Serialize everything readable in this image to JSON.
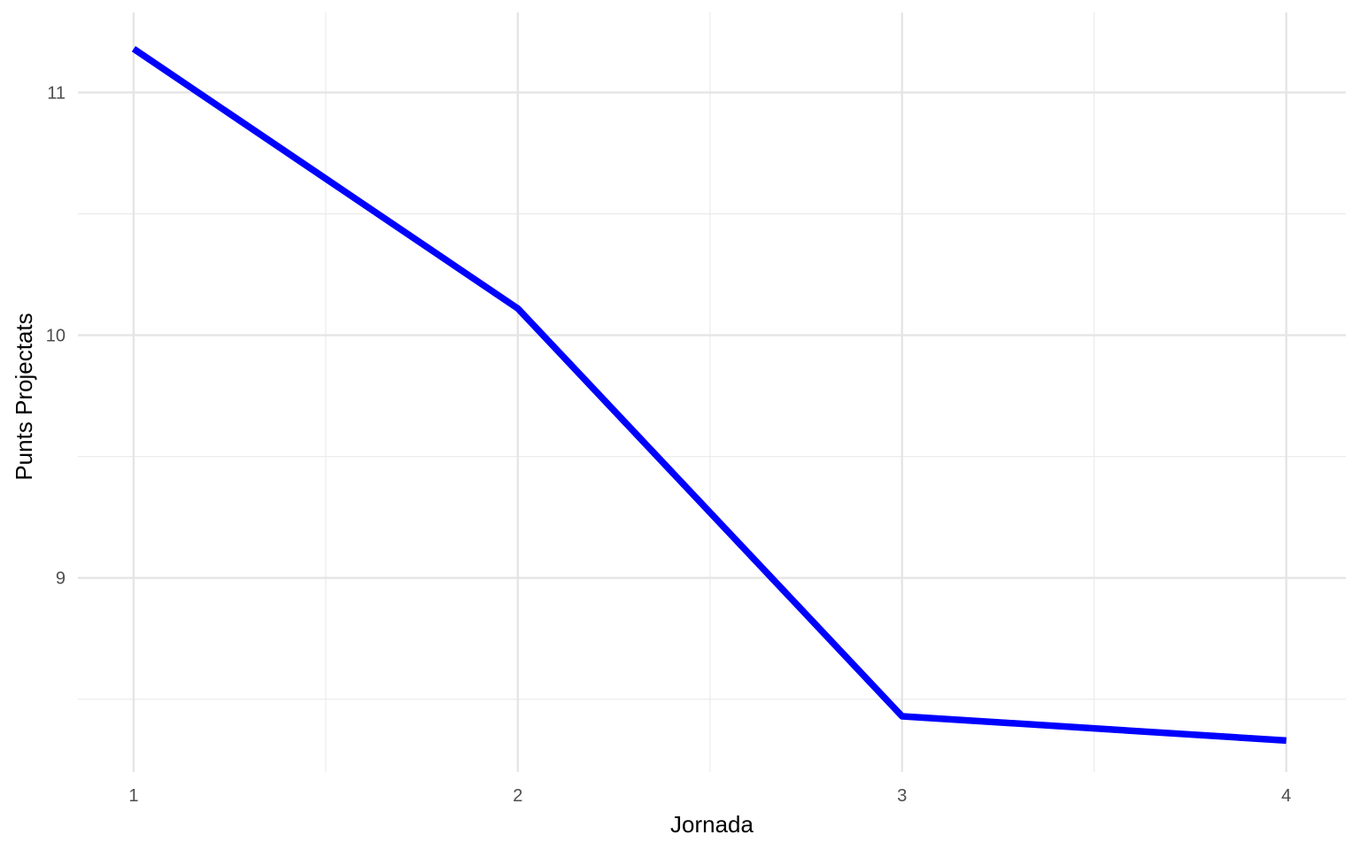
{
  "chart_data": {
    "type": "line",
    "title": "",
    "xlabel": "Jornada",
    "ylabel": "Punts Projectats",
    "x": [
      1,
      2,
      3,
      4
    ],
    "series": [
      {
        "values": [
          11.18,
          10.11,
          8.43,
          8.33
        ],
        "color": "#0000ff"
      }
    ],
    "x_ticks": [
      1,
      2,
      3,
      4
    ],
    "y_ticks": [
      9,
      10,
      11
    ],
    "xlim": [
      0.855,
      4.155
    ],
    "ylim": [
      8.2,
      11.33
    ],
    "grid": true,
    "legend": "none"
  }
}
